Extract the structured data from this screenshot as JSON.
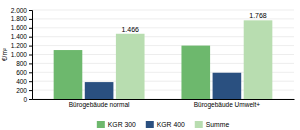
{
  "chart_data": {
    "type": "bar",
    "categories": [
      "Bürogebäude normal",
      "Bürogebäude Umwelt+"
    ],
    "series": [
      {
        "name": "KGR 300",
        "color": "#6db86d",
        "values": [
          1100,
          1200
        ]
      },
      {
        "name": "KGR 400",
        "color": "#2a5080",
        "values": [
          380,
          590
        ]
      },
      {
        "name": "Summe",
        "color": "#b8ddb0",
        "values": [
          1466,
          1768
        ],
        "value_labels": [
          "1.466",
          "1.768"
        ],
        "data_labels": true
      }
    ],
    "ylabel": "€/m²",
    "ylim": [
      0,
      2000
    ],
    "yticks": [
      0,
      200,
      400,
      600,
      800,
      {
        "value": 1000,
        "label": "1.000"
      },
      {
        "value": 1200,
        "label": "1.200"
      },
      {
        "value": 1400,
        "label": "1.400"
      },
      {
        "value": 1600,
        "label": "1.600"
      },
      {
        "value": 1800,
        "label": "1.800"
      },
      {
        "value": 2000,
        "label": "2.000"
      }
    ],
    "grid": true,
    "legend": "bottom"
  }
}
